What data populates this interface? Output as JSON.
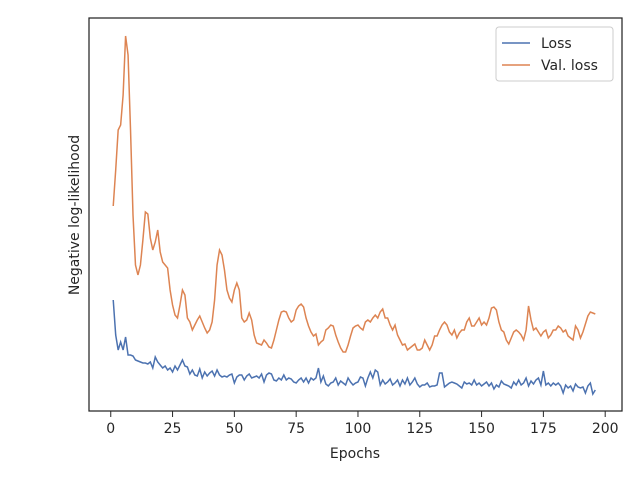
{
  "chart_data": {
    "type": "line",
    "xlabel": "Epochs",
    "ylabel": "Negative log-likelihood",
    "xlim": [
      -8.8,
      206.8
    ],
    "xticks": [
      0,
      25,
      50,
      75,
      100,
      125,
      150,
      175,
      200
    ],
    "ylim": [
      0,
      393
    ],
    "legend": "upper right",
    "x": [
      1,
      2,
      3,
      4,
      5,
      6,
      7,
      8,
      9,
      10,
      11,
      12,
      13,
      14,
      15,
      16,
      17,
      18,
      19,
      20,
      21,
      22,
      23,
      24,
      25,
      26,
      27,
      28,
      29,
      30,
      31,
      32,
      33,
      34,
      35,
      36,
      37,
      38,
      39,
      40,
      41,
      42,
      43,
      44,
      45,
      46,
      47,
      48,
      49,
      50,
      51,
      52,
      53,
      54,
      55,
      56,
      57,
      58,
      59,
      60,
      61,
      62,
      63,
      64,
      65,
      66,
      67,
      68,
      69,
      70,
      71,
      72,
      73,
      74,
      75,
      76,
      77,
      78,
      79,
      80,
      81,
      82,
      83,
      84,
      85,
      86,
      87,
      88,
      89,
      90,
      91,
      92,
      93,
      94,
      95,
      96,
      97,
      98,
      99,
      100,
      101,
      102,
      103,
      104,
      105,
      106,
      107,
      108,
      109,
      110,
      111,
      112,
      113,
      114,
      115,
      116,
      117,
      118,
      119,
      120,
      121,
      122,
      123,
      124,
      125,
      126,
      127,
      128,
      129,
      130,
      131,
      132,
      133,
      134,
      135,
      136,
      137,
      138,
      139,
      140,
      141,
      142,
      143,
      144,
      145,
      146,
      147,
      148,
      149,
      150,
      151,
      152,
      153,
      154,
      155,
      156,
      157,
      158,
      159,
      160,
      161,
      162,
      163,
      164,
      165,
      166,
      167,
      168,
      169,
      170,
      171,
      172,
      173,
      174,
      175,
      176,
      177,
      178,
      179,
      180,
      181,
      182,
      183,
      184,
      185,
      186,
      187,
      188,
      189,
      190,
      191,
      192,
      193,
      194,
      195,
      196
    ],
    "series": [
      {
        "name": "Loss",
        "color": "#4c72b0",
        "values": [
          111,
          76,
          61,
          69,
          61,
          74,
          56,
          56,
          55,
          51,
          50,
          49,
          48,
          48,
          47,
          49,
          43,
          54,
          49,
          46,
          43,
          45,
          41,
          43,
          39,
          45,
          41,
          46,
          51,
          45,
          44,
          37,
          41,
          36,
          35,
          42,
          33,
          39,
          35,
          38,
          40,
          35,
          41,
          36,
          34,
          35,
          34,
          36,
          37,
          28,
          34,
          36,
          36,
          31,
          35,
          37,
          33,
          34,
          35,
          33,
          37,
          29,
          36,
          38,
          37,
          31,
          30,
          33,
          31,
          36,
          31,
          33,
          32,
          29,
          28,
          31,
          33,
          29,
          33,
          28,
          33,
          31,
          33,
          43,
          29,
          35,
          27,
          25,
          28,
          29,
          33,
          26,
          30,
          28,
          26,
          33,
          29,
          26,
          28,
          29,
          34,
          33,
          25,
          33,
          39,
          33,
          41,
          39,
          26,
          31,
          27,
          29,
          32,
          26,
          28,
          31,
          25,
          31,
          27,
          33,
          26,
          29,
          33,
          27,
          24,
          26,
          26,
          28,
          24,
          25,
          25,
          26,
          38,
          38,
          24,
          26,
          28,
          29,
          28,
          27,
          25,
          23,
          29,
          27,
          28,
          26,
          31,
          26,
          28,
          25,
          27,
          29,
          25,
          28,
          22,
          26,
          24,
          30,
          27,
          26,
          25,
          23,
          29,
          26,
          31,
          26,
          28,
          33,
          25,
          30,
          27,
          31,
          33,
          26,
          40,
          26,
          28,
          25,
          28,
          26,
          28,
          25,
          18,
          26,
          23,
          25,
          20,
          27,
          24,
          23,
          24,
          18,
          25,
          28,
          17,
          21
        ]
      },
      {
        "name": "Val. loss",
        "color": "#dd8452",
        "values": [
          205,
          241,
          281,
          286,
          316,
          375,
          356,
          281,
          196,
          146,
          136,
          146,
          171,
          199,
          197,
          173,
          161,
          169,
          181,
          159,
          149,
          146,
          143,
          121,
          106,
          96,
          93,
          106,
          121,
          116,
          93,
          89,
          81,
          86,
          91,
          95,
          89,
          83,
          78,
          81,
          89,
          111,
          146,
          161,
          156,
          141,
          121,
          113,
          109,
          121,
          128,
          121,
          93,
          89,
          91,
          98,
          91,
          76,
          68,
          67,
          66,
          71,
          68,
          64,
          63,
          71,
          81,
          91,
          99,
          100,
          99,
          93,
          89,
          91,
          101,
          105,
          107,
          104,
          93,
          85,
          79,
          75,
          77,
          66,
          69,
          71,
          81,
          83,
          86,
          85,
          76,
          69,
          63,
          59,
          59,
          66,
          75,
          83,
          85,
          86,
          83,
          81,
          89,
          91,
          89,
          93,
          96,
          93,
          99,
          102,
          93,
          93,
          86,
          81,
          86,
          76,
          71,
          66,
          67,
          61,
          63,
          65,
          67,
          61,
          61,
          63,
          71,
          66,
          61,
          66,
          75,
          75,
          81,
          86,
          89,
          86,
          79,
          76,
          81,
          73,
          78,
          81,
          81,
          89,
          93,
          85,
          85,
          89,
          93,
          86,
          89,
          86,
          93,
          103,
          104,
          101,
          89,
          81,
          79,
          71,
          67,
          73,
          79,
          81,
          79,
          76,
          71,
          81,
          105,
          91,
          81,
          83,
          79,
          75,
          79,
          81,
          73,
          76,
          81,
          81,
          85,
          83,
          79,
          81,
          75,
          73,
          71,
          85,
          81,
          73,
          79,
          87,
          95,
          99,
          98,
          97
        ]
      }
    ]
  }
}
